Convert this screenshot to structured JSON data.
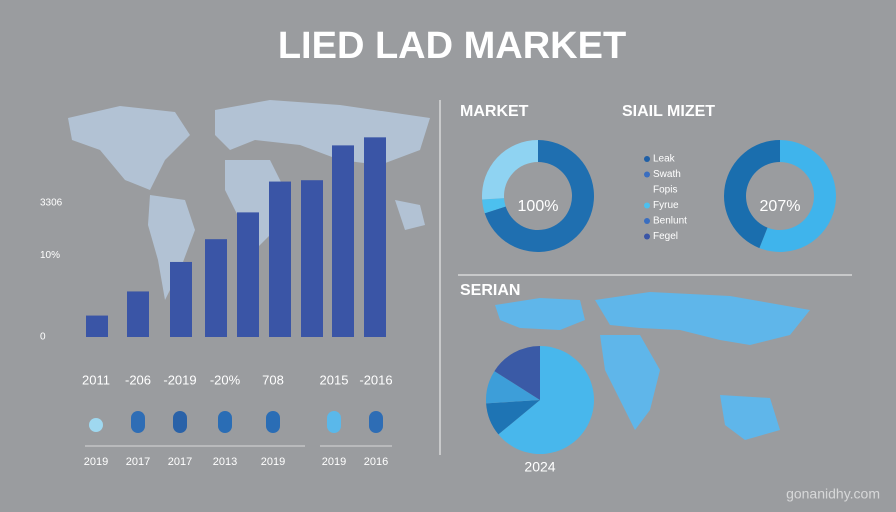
{
  "title": "LIED LAD MARKET",
  "chart_data": [
    {
      "type": "bar",
      "categories": [
        null,
        null,
        null,
        null,
        null,
        null,
        null,
        null,
        null
      ],
      "values": [
        16,
        34,
        56,
        73,
        93,
        116,
        117,
        143,
        149
      ],
      "color": "#3a55a6",
      "ylim": [
        0,
        150
      ],
      "yticks": [
        0,
        {
          "value": 61,
          "label": "10%"
        },
        {
          "value": 100,
          "label": "3306"
        }
      ]
    },
    {
      "type": "donut",
      "title": "MARKET",
      "center_label": "100%",
      "values": [
        70,
        4,
        26
      ],
      "colors": [
        "#1f6fb0",
        "#4cc0ef",
        "#8fd3f2"
      ]
    },
    {
      "type": "donut",
      "title": "SIAIL MIZET",
      "center_label": "207%",
      "values": [
        56,
        44
      ],
      "colors": [
        "#3fb4ec",
        "#1a6eae"
      ]
    },
    {
      "type": "pie",
      "title": "SERIAN",
      "subtitle": "2024",
      "values": [
        64,
        10,
        10,
        16
      ],
      "colors": [
        "#48b7ec",
        "#1e74b4",
        "#3d9ed9",
        "#3a5aa6"
      ]
    }
  ],
  "legend": {
    "items": [
      {
        "label": "Leak",
        "color": "#1f5fa6"
      },
      {
        "label": "Swath",
        "color": "#3a6ec0"
      },
      {
        "label": "Fopis",
        "color": null
      },
      {
        "label": "Fyrue",
        "color": "#4cc0ef"
      },
      {
        "label": "Benlunt",
        "color": "#3a6ec0"
      },
      {
        "label": "Fegel",
        "color": "#3a55a6"
      }
    ]
  },
  "timeline": {
    "top_labels": [
      "2011",
      "-206",
      "-2019",
      "-20%",
      "708",
      "2015",
      "-2016"
    ],
    "bottom_labels": [
      "2019",
      "2017",
      "2017",
      "2013",
      "2019",
      "2019",
      "2016"
    ]
  },
  "footer": "gonanidhy.com"
}
